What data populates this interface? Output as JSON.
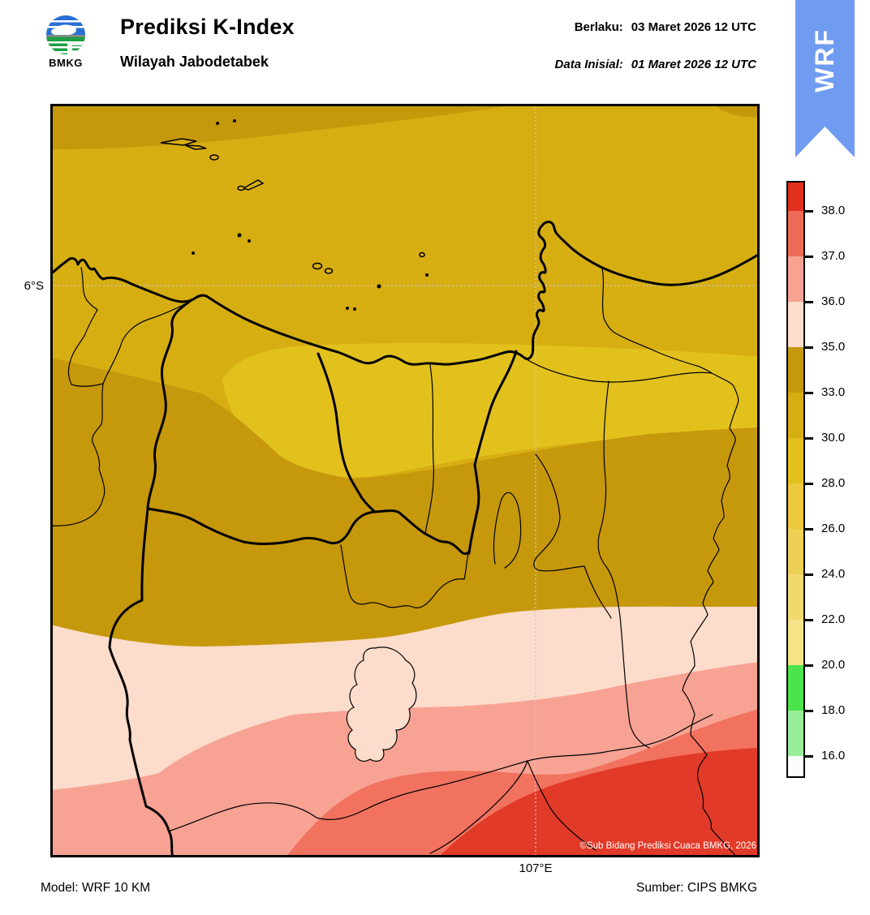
{
  "header": {
    "logo_text": "BMKG",
    "title": "Prediksi K-Index",
    "subtitle": "Wilayah Jabodetabek",
    "valid_label": "Berlaku:",
    "valid_value": "03 Maret 2026 12 UTC",
    "init_label": "Data Inisial:",
    "init_value": "01 Maret 2026 12 UTC"
  },
  "ribbon": {
    "label": "WRF",
    "color": "#6f9cf0"
  },
  "map": {
    "lat_label": "6°S",
    "lon_label": "107°E",
    "copyright": "©Sub Bidang Prediksi Cuaca BMKG, 2026",
    "colors": {
      "gold_dark": "#c6980b",
      "gold_mid": "#d7ae12",
      "gold_bright": "#e2c11d",
      "cream": "#fcdccb",
      "salmon_light": "#f8a294",
      "salmon_deep": "#f1725f",
      "red": "#e23a28",
      "boundary": "#000000",
      "island_fill": "#d7ae12",
      "grid": "#c9c9c9"
    }
  },
  "legend": {
    "ticks": [
      "38.0",
      "37.0",
      "36.0",
      "35.0",
      "33.0",
      "30.0",
      "28.0",
      "26.0",
      "24.0",
      "22.0",
      "20.0",
      "18.0",
      "16.0"
    ],
    "segment_colors": [
      "#e1301e",
      "#ee6b57",
      "#f8a294",
      "#fcdccb",
      "#c6980b",
      "#d7ae12",
      "#e2c11d",
      "#ecc93e",
      "#eed055",
      "#f1d96e",
      "#f6e489",
      "#4ce44c",
      "#99ef99",
      "#fcfcfc"
    ]
  },
  "footer": {
    "model": "Model: WRF 10 KM",
    "source": "Sumber: CIPS BMKG"
  }
}
